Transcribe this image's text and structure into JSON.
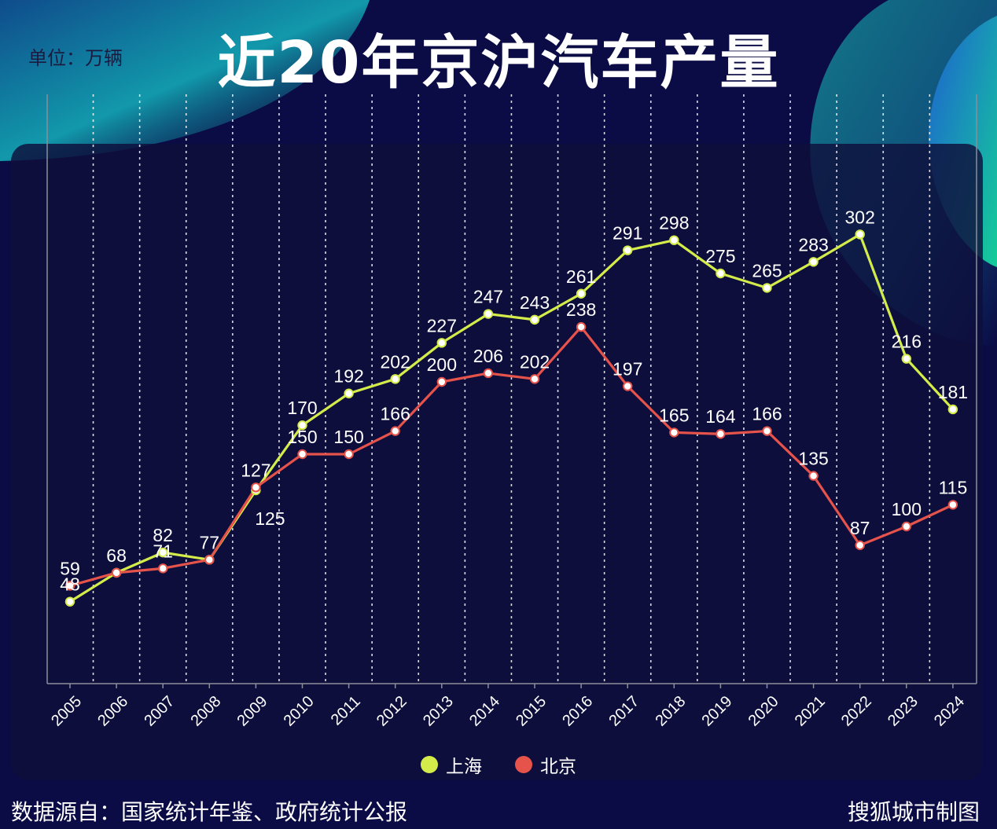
{
  "chart_data": {
    "type": "line",
    "title": "近20年京沪汽车产量",
    "unit_label": "单位：万辆",
    "categories": [
      "2005",
      "2006",
      "2007",
      "2008",
      "2009",
      "2010",
      "2011",
      "2012",
      "2013",
      "2014",
      "2015",
      "2016",
      "2017",
      "2018",
      "2019",
      "2020",
      "2021",
      "2022",
      "2023",
      "2024"
    ],
    "series": [
      {
        "name": "上海",
        "color": "#d4ec4a",
        "values": [
          48,
          68,
          82,
          77,
          125,
          170,
          192,
          202,
          227,
          247,
          243,
          261,
          291,
          298,
          275,
          265,
          283,
          302,
          216,
          181
        ]
      },
      {
        "name": "北京",
        "color": "#e5534b",
        "values": [
          59,
          68,
          71,
          77,
          127,
          150,
          150,
          166,
          200,
          206,
          202,
          238,
          197,
          165,
          164,
          166,
          135,
          87,
          100,
          115
        ]
      }
    ],
    "ylim": [
      -5,
      360
    ],
    "grid": true,
    "legend_position": "bottom"
  },
  "footer": {
    "source": "数据源自：国家统计年鉴、政府统计公报",
    "credit": "搜狐城市制图"
  }
}
